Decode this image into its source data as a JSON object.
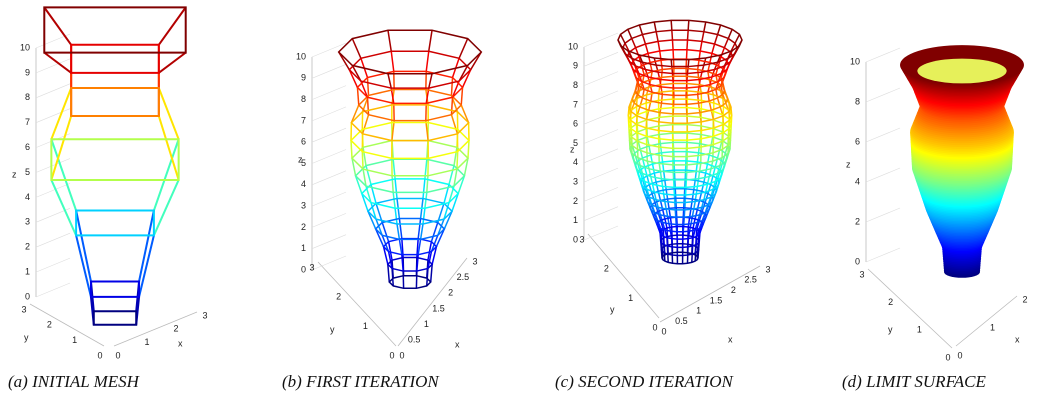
{
  "panels": [
    {
      "caption": "(a) INITIAL MESH",
      "z_label": "z",
      "y_label": "y",
      "x_label": "x",
      "z_ticks": [
        "0",
        "1",
        "2",
        "3",
        "4",
        "5",
        "6",
        "7",
        "8",
        "9",
        "10"
      ],
      "y_ticks": [
        "3",
        "2",
        "1",
        "0"
      ],
      "x_ticks": [
        "0",
        "1",
        "2",
        "3"
      ]
    },
    {
      "caption": "(b) FIRST ITERATION",
      "z_label": "z",
      "y_label": "y",
      "x_label": "x",
      "z_ticks": [
        "0",
        "1",
        "2",
        "3",
        "4",
        "5",
        "6",
        "7",
        "8",
        "9",
        "10"
      ],
      "y_ticks": [
        "3",
        "2",
        "1",
        "0"
      ],
      "x_ticks": [
        "0",
        "0.5",
        "1",
        "1.5",
        "2",
        "2.5",
        "3"
      ]
    },
    {
      "caption": "(c) SECOND ITERATION",
      "z_label": "z",
      "y_label": "y",
      "x_label": "x",
      "z_ticks": [
        "0",
        "1",
        "2",
        "3",
        "4",
        "5",
        "6",
        "7",
        "8",
        "9",
        "10"
      ],
      "y_ticks": [
        "3",
        "2",
        "1",
        "0"
      ],
      "x_ticks": [
        "0",
        "0.5",
        "1",
        "1.5",
        "2",
        "2.5",
        "3"
      ]
    },
    {
      "caption": "(d) LIMIT SURFACE",
      "z_label": "z",
      "y_label": "y",
      "x_label": "x",
      "z_ticks": [
        "0",
        "2",
        "4",
        "6",
        "8",
        "10"
      ],
      "y_ticks": [
        "3",
        "2",
        "1",
        "0"
      ],
      "x_ticks": [
        "0",
        "1",
        "2"
      ]
    }
  ]
}
